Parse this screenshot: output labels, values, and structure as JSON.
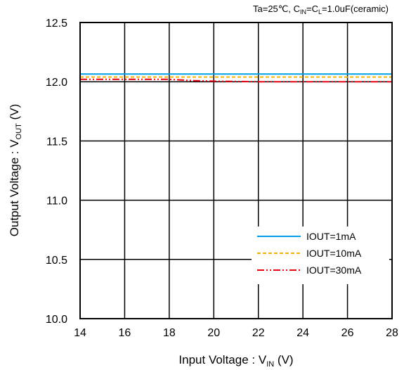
{
  "chart_data": {
    "type": "line",
    "condition": {
      "prefix": "Ta=25℃, C",
      "sub1": "IN",
      "mid": "=C",
      "sub2": "L",
      "suffix": "=1.0uF(ceramic)"
    },
    "xlabel": {
      "main": "Input Voltage : V",
      "sub": "IN",
      "unit": " (V)"
    },
    "ylabel": {
      "main": "Output Voltage : V",
      "sub": "OUT",
      "unit": " (V)"
    },
    "xlim": [
      14,
      28
    ],
    "ylim": [
      10.0,
      12.5
    ],
    "x_ticks": [
      14,
      16,
      18,
      20,
      22,
      24,
      26,
      28
    ],
    "y_ticks": [
      "10.0",
      "10.5",
      "11.0",
      "11.5",
      "12.0",
      "12.5"
    ],
    "grid": true,
    "legend_position": "bottom-right",
    "series": [
      {
        "name": "IOUT=1mA",
        "color": "#00a0e9",
        "style": "solid",
        "x": [
          14,
          28
        ],
        "y": [
          12.065,
          12.065
        ]
      },
      {
        "name": "IOUT=10mA",
        "color": "#f0b400",
        "style": "dashed",
        "x": [
          14,
          28
        ],
        "y": [
          12.04,
          12.04
        ]
      },
      {
        "name": "IOUT=30mA",
        "color": "#e60012",
        "style": "dashdotdot",
        "x": [
          14,
          18,
          19,
          20,
          22,
          24,
          28
        ],
        "y": [
          12.02,
          12.02,
          12.01,
          12.005,
          12.0,
          12.0,
          12.0
        ]
      }
    ]
  }
}
